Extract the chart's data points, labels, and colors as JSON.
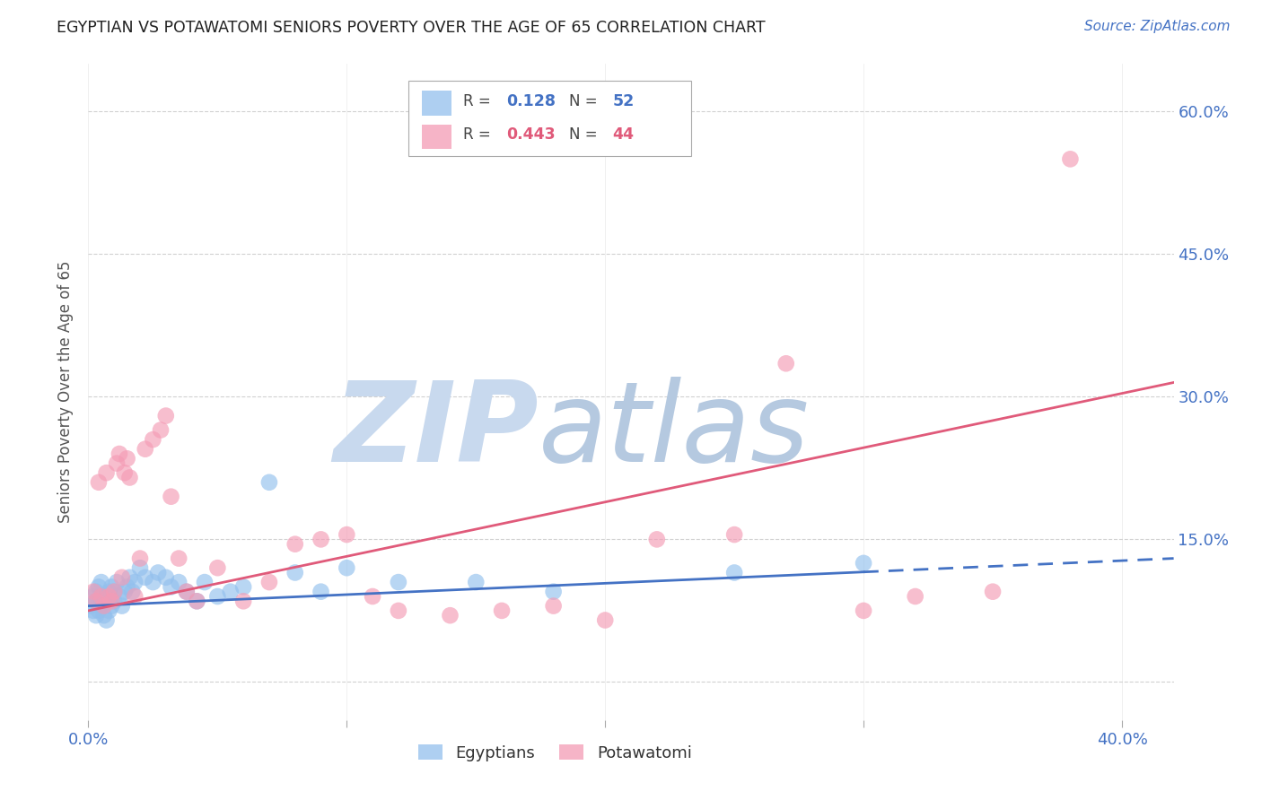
{
  "title": "EGYPTIAN VS POTAWATOMI SENIORS POVERTY OVER THE AGE OF 65 CORRELATION CHART",
  "source": "Source: ZipAtlas.com",
  "ylabel": "Seniors Poverty Over the Age of 65",
  "xlim": [
    0.0,
    0.42
  ],
  "ylim": [
    -0.04,
    0.65
  ],
  "color_egyptian": "#93c0ed",
  "color_potawatomi": "#f49bb5",
  "color_trend_egyptian": "#4472C4",
  "color_trend_potawatomi": "#E05A7A",
  "color_right_labels": "#4472C4",
  "color_x_labels": "#4472C4",
  "watermark_zip": "ZIP",
  "watermark_atlas": "atlas",
  "watermark_color_zip": "#c5d8f0",
  "watermark_color_atlas": "#b8cce4",
  "grid_color": "#cccccc",
  "background_color": "#ffffff",
  "legend_r_egyptian": "0.128",
  "legend_n_egyptian": "52",
  "legend_r_potawatomi": "0.443",
  "legend_n_potawatomi": "44",
  "legend_labels": [
    "Egyptians",
    "Potawatomi"
  ],
  "egyptian_x": [
    0.001,
    0.002,
    0.002,
    0.003,
    0.003,
    0.003,
    0.004,
    0.004,
    0.004,
    0.005,
    0.005,
    0.005,
    0.006,
    0.006,
    0.007,
    0.007,
    0.008,
    0.008,
    0.009,
    0.009,
    0.01,
    0.01,
    0.011,
    0.012,
    0.013,
    0.014,
    0.015,
    0.016,
    0.017,
    0.018,
    0.02,
    0.022,
    0.025,
    0.027,
    0.03,
    0.032,
    0.035,
    0.038,
    0.042,
    0.045,
    0.05,
    0.055,
    0.06,
    0.07,
    0.08,
    0.09,
    0.1,
    0.12,
    0.15,
    0.18,
    0.25,
    0.3
  ],
  "egyptian_y": [
    0.08,
    0.075,
    0.09,
    0.07,
    0.085,
    0.095,
    0.075,
    0.085,
    0.1,
    0.08,
    0.09,
    0.105,
    0.07,
    0.085,
    0.065,
    0.09,
    0.075,
    0.095,
    0.08,
    0.1,
    0.085,
    0.095,
    0.105,
    0.09,
    0.08,
    0.095,
    0.1,
    0.11,
    0.095,
    0.105,
    0.12,
    0.11,
    0.105,
    0.115,
    0.11,
    0.1,
    0.105,
    0.095,
    0.085,
    0.105,
    0.09,
    0.095,
    0.1,
    0.21,
    0.115,
    0.095,
    0.12,
    0.105,
    0.105,
    0.095,
    0.115,
    0.125
  ],
  "potawatomi_x": [
    0.002,
    0.003,
    0.004,
    0.005,
    0.006,
    0.007,
    0.008,
    0.009,
    0.01,
    0.011,
    0.012,
    0.013,
    0.014,
    0.015,
    0.016,
    0.018,
    0.02,
    0.022,
    0.025,
    0.028,
    0.03,
    0.032,
    0.035,
    0.038,
    0.042,
    0.05,
    0.06,
    0.07,
    0.08,
    0.09,
    0.1,
    0.11,
    0.12,
    0.14,
    0.16,
    0.18,
    0.2,
    0.22,
    0.25,
    0.27,
    0.3,
    0.32,
    0.35,
    0.38
  ],
  "potawatomi_y": [
    0.095,
    0.085,
    0.21,
    0.09,
    0.08,
    0.22,
    0.09,
    0.085,
    0.095,
    0.23,
    0.24,
    0.11,
    0.22,
    0.235,
    0.215,
    0.09,
    0.13,
    0.245,
    0.255,
    0.265,
    0.28,
    0.195,
    0.13,
    0.095,
    0.085,
    0.12,
    0.085,
    0.105,
    0.145,
    0.15,
    0.155,
    0.09,
    0.075,
    0.07,
    0.075,
    0.08,
    0.065,
    0.15,
    0.155,
    0.335,
    0.075,
    0.09,
    0.095,
    0.55
  ],
  "egyptian_trend": [
    0.08,
    0.13
  ],
  "potawatomi_trend": [
    0.075,
    0.315
  ],
  "trend_cutoff_egyptian": 0.3
}
